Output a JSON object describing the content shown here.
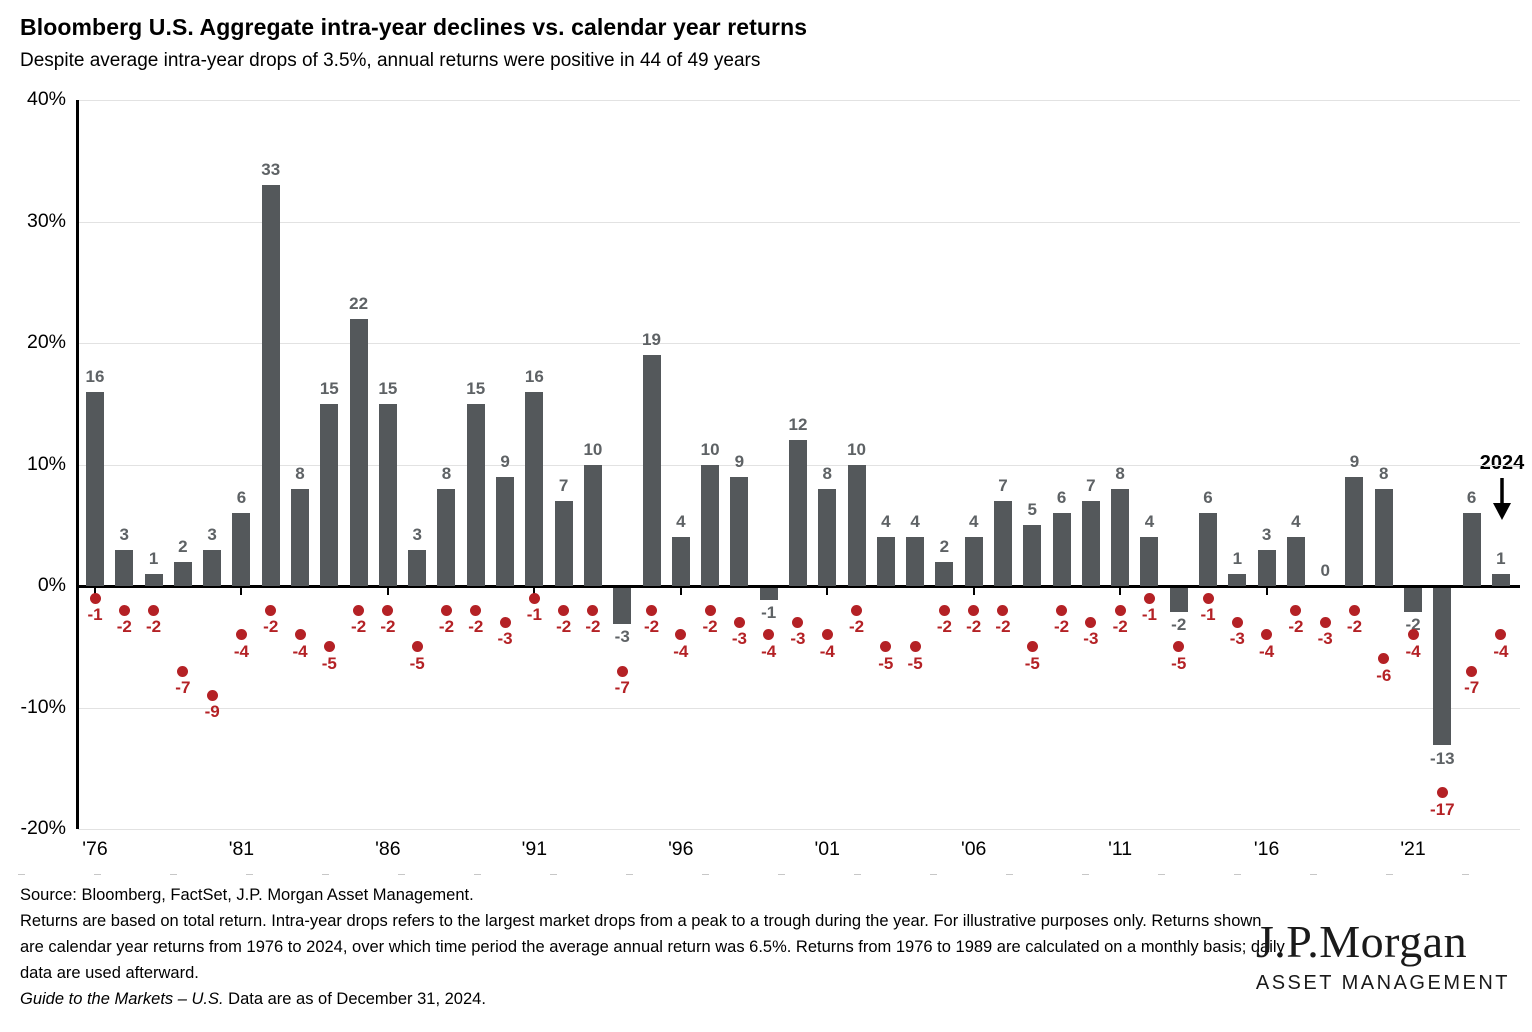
{
  "header": {
    "title": "Bloomberg U.S. Aggregate intra-year declines vs. calendar year returns",
    "subtitle": "Despite average intra-year drops of 3.5%, annual returns were positive in 44 of 49 years"
  },
  "chart_data": {
    "type": "bar",
    "x": [
      1976,
      1977,
      1978,
      1979,
      1980,
      1981,
      1982,
      1983,
      1984,
      1985,
      1986,
      1987,
      1988,
      1989,
      1990,
      1991,
      1992,
      1993,
      1994,
      1995,
      1996,
      1997,
      1998,
      1999,
      2000,
      2001,
      2002,
      2003,
      2004,
      2005,
      2006,
      2007,
      2008,
      2009,
      2010,
      2011,
      2012,
      2013,
      2014,
      2015,
      2016,
      2017,
      2018,
      2019,
      2020,
      2021,
      2022,
      2023,
      2024
    ],
    "series": [
      {
        "name": "Calendar year return (%)",
        "type": "bar",
        "values": [
          16,
          3,
          1,
          2,
          3,
          6,
          33,
          8,
          15,
          22,
          15,
          3,
          8,
          15,
          9,
          16,
          7,
          10,
          -3,
          19,
          4,
          10,
          9,
          -1,
          12,
          8,
          10,
          4,
          4,
          2,
          4,
          7,
          5,
          6,
          7,
          8,
          4,
          -2,
          6,
          1,
          3,
          4,
          0,
          9,
          8,
          -2,
          -13,
          6,
          1
        ]
      },
      {
        "name": "Intra-year decline (%)",
        "type": "scatter",
        "values": [
          -1,
          -2,
          -2,
          -7,
          -9,
          -4,
          -2,
          -4,
          -5,
          -2,
          -2,
          -5,
          -2,
          -2,
          -3,
          -1,
          -2,
          -2,
          -7,
          -2,
          -4,
          -2,
          -3,
          -4,
          -3,
          -4,
          -2,
          -5,
          -5,
          -2,
          -2,
          -2,
          -5,
          -2,
          -3,
          -2,
          -1,
          -5,
          -1,
          -3,
          -4,
          -2,
          -3,
          -2,
          -6,
          -4,
          -17,
          -7,
          -4
        ]
      }
    ],
    "ylim": [
      -20,
      40
    ],
    "y_ticks": [
      {
        "value": 40,
        "label": "40%"
      },
      {
        "value": 30,
        "label": "30%"
      },
      {
        "value": 20,
        "label": "20%"
      },
      {
        "value": 10,
        "label": "10%"
      },
      {
        "value": 0,
        "label": "0%"
      },
      {
        "value": -10,
        "label": "-10%"
      },
      {
        "value": -20,
        "label": "-20%"
      }
    ],
    "x_ticks": [
      {
        "year": 1976,
        "label": "'76"
      },
      {
        "year": 1981,
        "label": "'81"
      },
      {
        "year": 1986,
        "label": "'86"
      },
      {
        "year": 1991,
        "label": "'91"
      },
      {
        "year": 1996,
        "label": "'96"
      },
      {
        "year": 2001,
        "label": "'01"
      },
      {
        "year": 2006,
        "label": "'06"
      },
      {
        "year": 2011,
        "label": "'11"
      },
      {
        "year": 2016,
        "label": "'16"
      },
      {
        "year": 2021,
        "label": "'21"
      }
    ],
    "grid": "horizontal",
    "legend": "none",
    "annotation": {
      "label": "2024",
      "target_year": 2024,
      "target_value": 1
    },
    "colors": {
      "bar": "#54585B",
      "bar_label": "#5E6265",
      "dot": "#B42125",
      "dot_label": "#B42125",
      "gridline": "#e2e2e2",
      "axis": "#000000"
    }
  },
  "footnote": {
    "source": "Source: Bloomberg, FactSet, J.P. Morgan Asset Management.",
    "body": "Returns are based on total return. Intra-year drops refers to the largest market drops from a peak to a trough during the year. For illustrative purposes only. Returns shown are calendar year returns from 1976 to 2024, over which time period the average annual return was 6.5%. Returns from 1976 to 1989 are calculated on a monthly basis; daily data are used afterward.",
    "gtm_italic": "Guide to the Markets – U.S.",
    "gtm_rest": " Data are as of December 31, 2024."
  },
  "logo": {
    "brand": "J.P.Morgan",
    "subbrand": "ASSET MANAGEMENT"
  }
}
